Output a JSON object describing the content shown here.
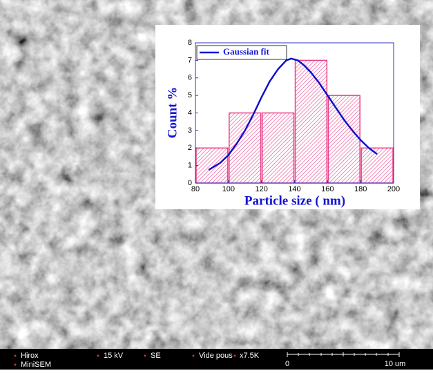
{
  "chart_data": {
    "type": "histogram",
    "xlabel": "Particle size ( nm)",
    "ylabel": "Count %",
    "bins": [
      80,
      100,
      120,
      140,
      160,
      180,
      200
    ],
    "values": [
      2,
      4,
      4,
      7,
      5,
      2
    ],
    "color": "#e8408a",
    "xlim": [
      80,
      200
    ],
    "xticks": [
      80,
      100,
      120,
      140,
      160,
      180,
      200
    ],
    "ylim": [
      0,
      8
    ],
    "yticks": [
      0,
      1,
      2,
      3,
      4,
      5,
      6,
      7,
      8
    ],
    "legend": "upper left",
    "series": [
      {
        "name": "Gaussian fit",
        "type": "line",
        "color": "#1010d0",
        "x": [
          88,
          95,
          100,
          105,
          110,
          115,
          120,
          125,
          130,
          135,
          138,
          142,
          146,
          150,
          155,
          160,
          165,
          170,
          175,
          180,
          185,
          190
        ],
        "values": [
          0.75,
          1.15,
          1.6,
          2.25,
          3.0,
          3.9,
          4.9,
          5.8,
          6.5,
          7.0,
          7.1,
          7.0,
          6.7,
          6.3,
          5.7,
          5.0,
          4.3,
          3.6,
          3.0,
          2.45,
          2.0,
          1.65
        ]
      }
    ]
  },
  "info_bar": {
    "brand": "Hirox",
    "model": "MiniSEM",
    "voltage": "15 kV",
    "detector": "SE",
    "vacuum": "Vide pous",
    "magnification": "x7.5K",
    "scale_start": "0",
    "scale_end": "10 um"
  }
}
